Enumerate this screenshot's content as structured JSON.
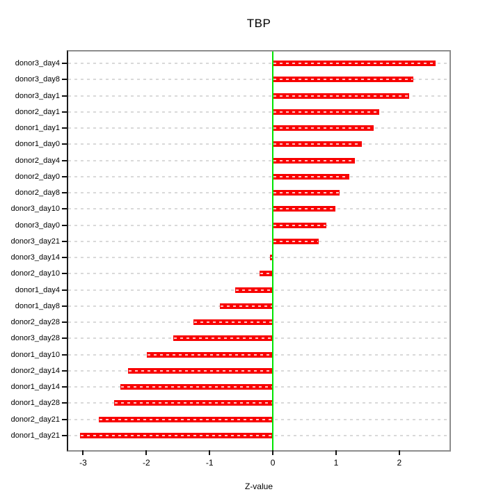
{
  "chart_data": {
    "type": "bar",
    "orientation": "horizontal",
    "title": "TBP",
    "xlabel": "Z-value",
    "ylabel": "",
    "xlim": [
      -3.236,
      2.794
    ],
    "x_ticks": [
      -3,
      -2,
      -1,
      0,
      1,
      2
    ],
    "grid": "dashed horizontal line per category, full plot width",
    "zero_line_at": 0,
    "legend": "none",
    "colors": {
      "bar": "#f80000",
      "bar_centerline": "#ffc9c9",
      "zero_line": "#00e400",
      "grid": "#d9d9d9",
      "box": "#8c8c8c",
      "axis": "#111111"
    },
    "categories": [
      "donor3_day4",
      "donor3_day8",
      "donor3_day1",
      "donor2_day1",
      "donor1_day1",
      "donor1_day0",
      "donor2_day4",
      "donor2_day0",
      "donor2_day8",
      "donor3_day10",
      "donor3_day0",
      "donor3_day21",
      "donor3_day14",
      "donor2_day10",
      "donor1_day4",
      "donor1_day8",
      "donor2_day28",
      "donor3_day28",
      "donor1_day10",
      "donor2_day14",
      "donor1_day14",
      "donor1_day28",
      "donor2_day21",
      "donor1_day21"
    ],
    "values": [
      2.57,
      2.22,
      2.16,
      1.68,
      1.6,
      1.41,
      1.3,
      1.21,
      1.06,
      0.99,
      0.85,
      0.72,
      -0.05,
      -0.21,
      -0.6,
      -0.84,
      -1.25,
      -1.57,
      -1.99,
      -2.29,
      -2.41,
      -2.51,
      -2.75,
      -3.05
    ]
  }
}
